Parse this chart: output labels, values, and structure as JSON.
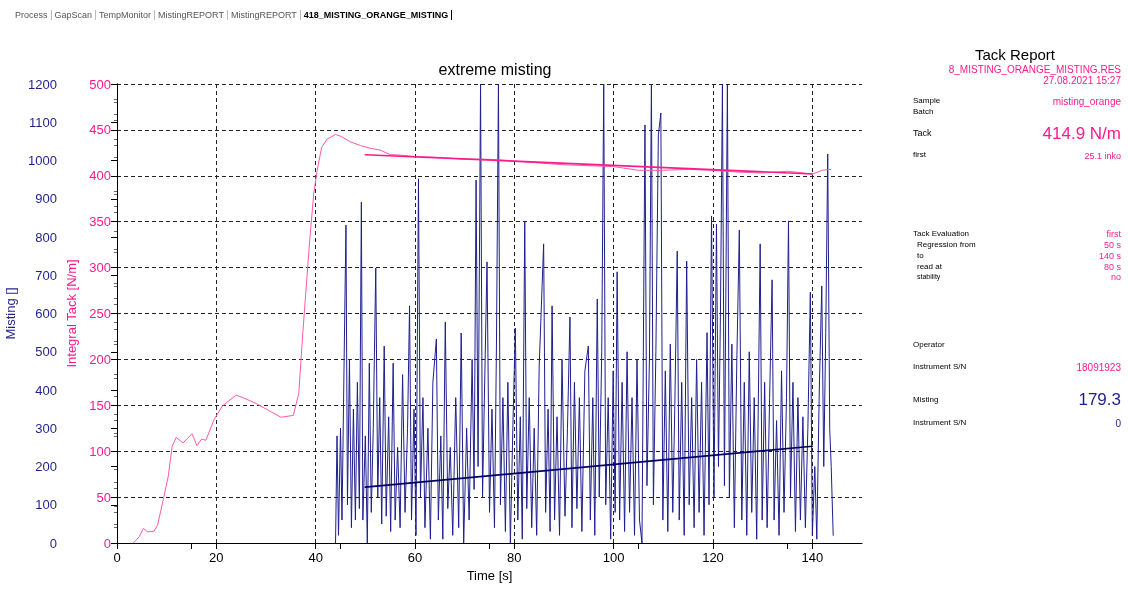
{
  "chart_data": [
    {
      "type": "other",
      "annotations": [
        "Process",
        "GapScan",
        "TempMonitor",
        "MistingREPORT",
        "MistingREPORT",
        "418_MISTING_ORANGE_MISTING"
      ]
    },
    {
      "type": "line",
      "title": "extreme misting",
      "xlabel": "Time [s]",
      "ylabel": "Integral Tack [N/m]",
      "y2label": "Misting []",
      "xlim": [
        0,
        150
      ],
      "xticks": [
        0,
        20,
        40,
        60,
        80,
        100,
        120,
        140
      ],
      "ylim": [
        0,
        500
      ],
      "yticks": [
        0,
        50,
        100,
        150,
        200,
        250,
        300,
        350,
        400,
        450,
        500
      ],
      "y2lim": [
        0,
        1200
      ],
      "y2ticks": [
        0,
        100,
        200,
        300,
        400,
        500,
        600,
        700,
        800,
        900,
        1000,
        1100,
        1200
      ],
      "grid": true,
      "marker": "none",
      "line_style": "solid",
      "series": [
        {
          "axis": "y2",
          "color": "#1f1f8f",
          "x": [
            44.0,
            44.3,
            44.6,
            45.0,
            45.3,
            45.7,
            46.1,
            46.4,
            46.8,
            47.2,
            47.6,
            48.0,
            48.4,
            48.8,
            49.2,
            49.5,
            50.0,
            50.4,
            50.8,
            51.2,
            51.6,
            52.1,
            52.5,
            52.9,
            53.3,
            53.8,
            54.2,
            54.7,
            55.1,
            55.6,
            56.0,
            56.5,
            57.0,
            57.5,
            58.0,
            58.5,
            58.9,
            59.3,
            59.8,
            60.2,
            60.7,
            61.1,
            61.6,
            62.0,
            62.6,
            63.1,
            63.6,
            64.3,
            64.7,
            65.2,
            65.6,
            66.1,
            66.6,
            67.1,
            67.6,
            68.2,
            68.8,
            69.3,
            69.8,
            70.4,
            70.9,
            71.5,
            71.9,
            72.3,
            72.7,
            73.2,
            73.6,
            74.0,
            74.5,
            75.0,
            75.5,
            76.0,
            76.4,
            76.8,
            77.2,
            77.7,
            78.2,
            78.7,
            79.2,
            79.7,
            80.2,
            80.7,
            81.2,
            81.6,
            82.1,
            82.5,
            83.0,
            83.5,
            84.0,
            84.5,
            85.0,
            85.9,
            86.3,
            86.8,
            87.2,
            87.6,
            88.1,
            88.6,
            89.1,
            89.6,
            90.2,
            90.7,
            91.2,
            91.6,
            92.1,
            92.6,
            93.1,
            93.6,
            94.2,
            94.9,
            95.3,
            95.8,
            96.2,
            96.7,
            97.1,
            97.6,
            98.0,
            98.4,
            98.9,
            99.4,
            99.9,
            100.3,
            100.7,
            101.2,
            101.7,
            102.2,
            102.7,
            103.2,
            103.7,
            104.2,
            104.7,
            105.2,
            105.7,
            106.3,
            106.7,
            107.2,
            107.6,
            108.0,
            108.5,
            109.0,
            109.5,
            109.9,
            110.4,
            110.9,
            111.4,
            111.9,
            112.3,
            112.8,
            113.2,
            113.7,
            114.2,
            114.7,
            115.2,
            115.7,
            116.2,
            116.7,
            117.2,
            117.7,
            118.2,
            118.8,
            119.2,
            119.7,
            120.2,
            120.7,
            121.1,
            121.5,
            121.9,
            122.3,
            122.9,
            123.3,
            123.8,
            124.3,
            124.8,
            125.3,
            125.8,
            126.3,
            126.8,
            127.3,
            127.8,
            128.3,
            128.8,
            129.5,
            129.9,
            130.4,
            130.9,
            131.4,
            131.9,
            132.3,
            132.8,
            133.3,
            133.8,
            134.3,
            134.8,
            135.2,
            135.6,
            136.1,
            136.6,
            137.1,
            137.6,
            138.1,
            138.6,
            139.1,
            139.6,
            140.0,
            140.5,
            140.9,
            141.4,
            141.9,
            142.3,
            142.7,
            143.1,
            143.5,
            143.8,
            144.2
          ],
          "values": [
            0,
            280,
            20,
            300,
            60,
            450,
            831,
            100,
            480,
            40,
            350,
            60,
            420,
            90,
            891,
            60,
            280,
            0,
            470,
            80,
            300,
            719,
            120,
            380,
            50,
            515,
            70,
            330,
            30,
            470,
            60,
            250,
            40,
            440,
            80,
            300,
            620,
            60,
            350,
            20,
            952,
            120,
            380,
            40,
            300,
            10,
            420,
            533,
            60,
            280,
            10,
            578,
            90,
            250,
            20,
            380,
            40,
            549,
            0,
            300,
            60,
            480,
            140,
            949,
            200,
            1200,
            120,
            400,
            735,
            80,
            350,
            40,
            520,
            1200,
            100,
            380,
            30,
            420,
            0,
            300,
            562,
            60,
            330,
            10,
            842,
            90,
            380,
            40,
            300,
            20,
            460,
            782,
            80,
            350,
            30,
            620,
            60,
            330,
            20,
            480,
            70,
            300,
            591,
            40,
            420,
            90,
            380,
            30,
            450,
            515,
            60,
            380,
            20,
            638,
            120,
            500,
            1200,
            100,
            380,
            10,
            450,
            80,
            709,
            60,
            420,
            30,
            500,
            80,
            380,
            20,
            480,
            60,
            0,
            1093,
            150,
            480,
            1200,
            100,
            500,
            1067,
            1124,
            60,
            450,
            30,
            520,
            80,
            350,
            763,
            60,
            420,
            20,
            737,
            100,
            380,
            40,
            480,
            80,
            420,
            20,
            550,
            100,
            855,
            120,
            834,
            200,
            600,
            1200,
            150,
            1200,
            120,
            520,
            40,
            480,
            818,
            60,
            420,
            20,
            500,
            80,
            380,
            10,
            782,
            60,
            420,
            40,
            380,
            688,
            60,
            320,
            20,
            450,
            80,
            380,
            842,
            120,
            420,
            30,
            380,
            60,
            330,
            40,
            300,
            656,
            20,
            200,
            10,
            400,
            672,
            200,
            550,
            1017,
            300,
            200,
            20
          ]
        },
        {
          "axis": "y2",
          "color": "#000066",
          "x": [
            50,
            140
          ],
          "values": [
            146,
            253
          ]
        },
        {
          "axis": "y",
          "color": "#ff5aa8",
          "x": [
            3.3,
            4.5,
            5.3,
            6.2,
            7.5,
            8.2,
            9.3,
            10.3,
            11.1,
            11.9,
            13.3,
            15.1,
            16.1,
            17.0,
            17.9,
            19.5,
            21.2,
            22.3,
            24.0,
            25.5,
            28,
            31,
            33,
            35.5,
            36.6,
            37.4,
            38,
            38.8,
            39.6,
            40.3,
            41.2,
            42.3,
            44,
            45.1,
            47,
            49,
            51,
            53,
            55,
            56,
            60,
            65,
            70,
            75,
            80,
            85,
            90,
            95,
            100,
            105,
            110,
            115,
            120,
            125,
            130,
            135,
            140,
            142,
            143.7
          ],
          "values": [
            0,
            7,
            16,
            12,
            13,
            20,
            47,
            72,
            105,
            115,
            109,
            119,
            106,
            113,
            112,
            134,
            149,
            154,
            161,
            158,
            152,
            143,
            137,
            139,
            163,
            228,
            272,
            330,
            380,
            406,
            431,
            440,
            445,
            443,
            437,
            433,
            430,
            428,
            423,
            423,
            421,
            420,
            418,
            418,
            416,
            414,
            412,
            411,
            410,
            406,
            406,
            407,
            406,
            404,
            403,
            405,
            402,
            406,
            407
          ]
        },
        {
          "axis": "y",
          "color": "#ff1a8c",
          "x": [
            50,
            140
          ],
          "values": [
            423,
            402
          ]
        }
      ]
    },
    {
      "type": "other",
      "title": "Tack Report",
      "annotations": [
        "8_MISTING_ORANGE_MISTING.RES",
        "27.08.2021 15:27",
        "Sample",
        "misting_orange",
        "Batch",
        "Tack",
        "414.9 N/m",
        "first",
        "25.1 inko",
        "Tack Evaluation",
        "first",
        "Regression from",
        "50 s",
        "to",
        "140 s",
        "read at",
        "80 s",
        "stability",
        "no",
        "Operator",
        "Instrument S/N",
        "18091923",
        "Misting",
        "179.3",
        "Instrument S/N",
        "0"
      ]
    }
  ]
}
